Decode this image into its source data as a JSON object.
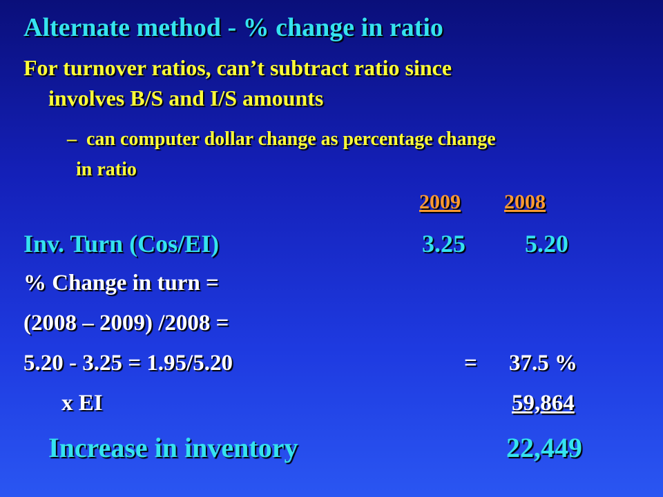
{
  "title": "Alternate method - % change in ratio",
  "bullet1": {
    "line1": "For turnover ratios, can’t subtract ratio since",
    "line2": "involves B/S and I/S amounts"
  },
  "sub_bullet": {
    "dash": "–",
    "line1": "can computer dollar change as percentage change",
    "line2": "in ratio"
  },
  "years": [
    "2009",
    "2008"
  ],
  "inv_turn": {
    "label": "Inv. Turn (Cos/EI)",
    "v2009": "3.25",
    "v2008": "5.20"
  },
  "pct_change_label": "% Change in turn =",
  "formula": "(2008 – 2009) /2008 =",
  "calc": {
    "expr": "5.20 - 3.25 = 1.95/5.20",
    "eq": "=",
    "result": "37.5 %"
  },
  "ei": {
    "label": "x EI",
    "value": "59,864"
  },
  "increase": {
    "label": "Increase in inventory",
    "value": "22,449"
  }
}
